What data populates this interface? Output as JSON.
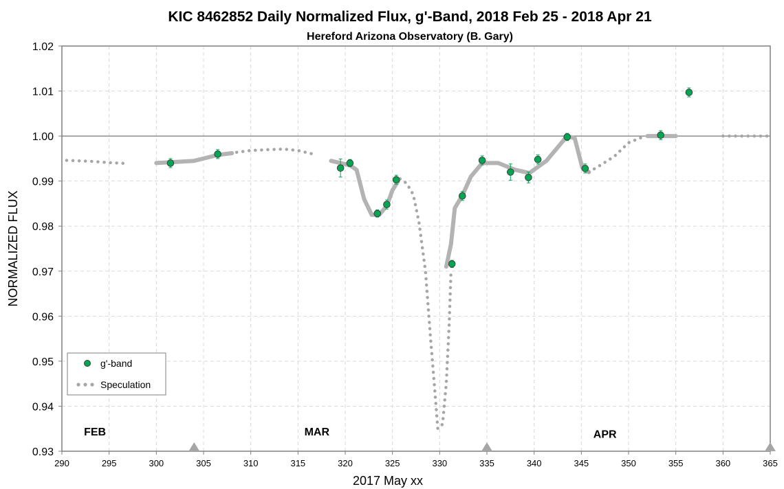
{
  "chart_data": {
    "type": "scatter",
    "title": "KIC 8462852 Daily  Normalized Flux, g'-Band, 2018 Feb 25 - 2018 Apr 21",
    "subtitle": "Hereford Arizona Observatory (B. Gary)",
    "xlabel": "2017 May xx",
    "ylabel": "NORMALIZED FLUX",
    "xlim": [
      290,
      365
    ],
    "ylim": [
      0.93,
      1.02
    ],
    "x_ticks": [
      "290",
      "295",
      "300",
      "305",
      "310",
      "315",
      "320",
      "325",
      "330",
      "335",
      "340",
      "345",
      "350",
      "355",
      "360",
      "365"
    ],
    "y_ticks": [
      "0.93",
      "0.94",
      "0.95",
      "0.96",
      "0.97",
      "0.98",
      "0.99",
      "1.00",
      "1.01",
      "1.02"
    ],
    "grid": true,
    "legend_position": "bottom-left",
    "reference_line": 1.0,
    "month_labels": [
      {
        "text": "FEB",
        "x": 293.5,
        "y": 0.9335
      },
      {
        "text": "MAR",
        "x": 317.0,
        "y": 0.9335
      },
      {
        "text": "APR",
        "x": 347.5,
        "y": 0.933
      }
    ],
    "markers_x": [
      304.0,
      335.0,
      365.0
    ],
    "series": [
      {
        "name": "g'-band",
        "kind": "points",
        "color": "#00a651",
        "points": [
          {
            "x": 301.5,
            "y": 0.994,
            "err": 0.001
          },
          {
            "x": 306.5,
            "y": 0.996,
            "err": 0.001
          },
          {
            "x": 319.5,
            "y": 0.9929,
            "err": 0.002
          },
          {
            "x": 320.5,
            "y": 0.994,
            "err": 0.0008
          },
          {
            "x": 323.4,
            "y": 0.9828,
            "err": 0.0008
          },
          {
            "x": 324.4,
            "y": 0.9848,
            "err": 0.001
          },
          {
            "x": 325.4,
            "y": 0.9903,
            "err": 0.001
          },
          {
            "x": 331.3,
            "y": 0.9716,
            "err": 0.0008
          },
          {
            "x": 332.4,
            "y": 0.9867,
            "err": 0.001
          },
          {
            "x": 334.5,
            "y": 0.9946,
            "err": 0.001
          },
          {
            "x": 337.5,
            "y": 0.992,
            "err": 0.0018
          },
          {
            "x": 339.4,
            "y": 0.9908,
            "err": 0.0012
          },
          {
            "x": 340.4,
            "y": 0.9948,
            "err": 0.001
          },
          {
            "x": 343.5,
            "y": 0.9998,
            "err": 0.0008
          },
          {
            "x": 345.4,
            "y": 0.9928,
            "err": 0.001
          },
          {
            "x": 353.4,
            "y": 1.0002,
            "err": 0.001
          },
          {
            "x": 356.4,
            "y": 1.0097,
            "err": 0.001
          }
        ]
      },
      {
        "name": "",
        "kind": "fit",
        "color": "#b3b3b3",
        "segments": [
          [
            [
              300,
              0.994
            ],
            [
              304,
              0.9945
            ],
            [
              306.5,
              0.9958
            ],
            [
              308,
              0.9962
            ]
          ],
          [
            [
              318.5,
              0.9945
            ],
            [
              320.5,
              0.9935
            ],
            [
              321.2,
              0.9925
            ],
            [
              322,
              0.986
            ],
            [
              322.8,
              0.9825
            ],
            [
              323.6,
              0.9825
            ],
            [
              324.4,
              0.9845
            ],
            [
              325,
              0.988
            ],
            [
              325.6,
              0.99
            ]
          ],
          [
            [
              330.7,
              0.971
            ],
            [
              331.2,
              0.976
            ],
            [
              331.6,
              0.984
            ],
            [
              332.4,
              0.9868
            ],
            [
              333.3,
              0.991
            ],
            [
              334.5,
              0.994
            ],
            [
              336.2,
              0.994
            ],
            [
              338,
              0.9925
            ],
            [
              339.5,
              0.9918
            ],
            [
              341.3,
              0.9945
            ],
            [
              342.5,
              0.9975
            ],
            [
              343.5,
              1.0
            ],
            [
              344.3,
              0.9995
            ],
            [
              345.1,
              0.993
            ],
            [
              345.8,
              0.992
            ]
          ],
          [
            [
              352,
              1.0
            ],
            [
              355,
              1.0
            ]
          ]
        ]
      },
      {
        "name": "Speculation",
        "kind": "dots",
        "color": "#a6a6a6",
        "segments": [
          [
            [
              290.5,
              0.9946
            ],
            [
              293,
              0.9944
            ],
            [
              295,
              0.9941
            ],
            [
              297,
              0.9939
            ]
          ],
          [
            [
              308.5,
              0.9964
            ],
            [
              310,
              0.9968
            ],
            [
              312,
              0.997
            ],
            [
              313.5,
              0.9971
            ],
            [
              315,
              0.9968
            ],
            [
              317,
              0.9958
            ]
          ],
          [
            [
              325.8,
              0.9905
            ],
            [
              326.5,
              0.9895
            ],
            [
              327.2,
              0.987
            ],
            [
              327.8,
              0.981
            ],
            [
              328.5,
              0.97
            ],
            [
              329,
              0.956
            ],
            [
              329.5,
              0.943
            ],
            [
              329.8,
              0.935
            ],
            [
              330.3,
              0.936
            ],
            [
              330.7,
              0.945
            ],
            [
              331,
              0.958
            ],
            [
              331.2,
              0.97
            ]
          ],
          [
            [
              345.8,
              0.992
            ],
            [
              347,
              0.9935
            ],
            [
              348.5,
              0.9955
            ],
            [
              350,
              0.9985
            ],
            [
              351.5,
              0.9998
            ]
          ],
          [
            [
              360,
              1.0
            ],
            [
              363,
              1.0
            ],
            [
              365,
              1.0
            ]
          ]
        ]
      }
    ]
  }
}
